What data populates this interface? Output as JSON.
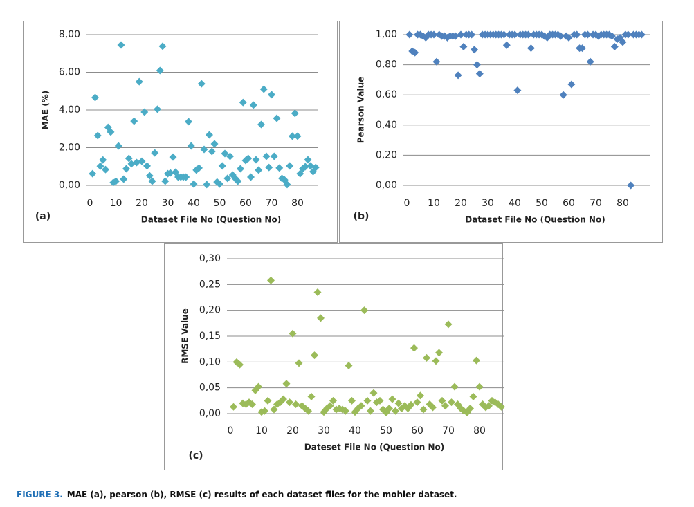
{
  "chart_data": [
    {
      "type": "scatter",
      "panel_label": "(a)",
      "y_label": "MAE (%)",
      "x_label": "Dataset File No (Question No)",
      "color": "#4bacc6",
      "grid": true,
      "xlim": [
        0,
        88
      ],
      "ylim": [
        0,
        8
      ],
      "xticks": [
        0,
        10,
        20,
        30,
        40,
        50,
        60,
        70,
        80
      ],
      "yticks": [
        {
          "value": 0,
          "label": "0,00"
        },
        {
          "value": 2,
          "label": "2,00"
        },
        {
          "value": 4,
          "label": "4,00"
        },
        {
          "value": 6,
          "label": "6,00"
        },
        {
          "value": 8,
          "label": "8,00"
        }
      ],
      "x": [
        1,
        2,
        3,
        4,
        5,
        6,
        7,
        8,
        9,
        10,
        11,
        12,
        13,
        14,
        15,
        16,
        17,
        18,
        19,
        20,
        21,
        22,
        23,
        24,
        25,
        26,
        27,
        28,
        29,
        30,
        31,
        32,
        33,
        34,
        35,
        36,
        37,
        38,
        39,
        40,
        41,
        42,
        43,
        44,
        45,
        46,
        47,
        48,
        49,
        50,
        51,
        52,
        53,
        54,
        55,
        56,
        57,
        58,
        59,
        60,
        61,
        62,
        63,
        64,
        65,
        66,
        67,
        68,
        69,
        70,
        71,
        72,
        73,
        74,
        75,
        76,
        77,
        78,
        79,
        80,
        81,
        82,
        83,
        84,
        85,
        86,
        87
      ],
      "values": [
        0.62,
        4.66,
        2.64,
        1.02,
        1.35,
        0.84,
        3.08,
        2.83,
        0.15,
        0.22,
        2.09,
        7.45,
        0.33,
        0.88,
        1.43,
        1.14,
        3.41,
        1.21,
        5.5,
        1.28,
        3.89,
        1.03,
        0.51,
        0.22,
        1.72,
        4.04,
        6.09,
        7.38,
        0.22,
        0.62,
        0.66,
        1.5,
        0.7,
        0.44,
        0.44,
        0.44,
        0.44,
        3.38,
        2.09,
        0.07,
        0.81,
        0.92,
        5.39,
        1.91,
        0.04,
        2.68,
        1.8,
        2.2,
        0.18,
        0.07,
        1.03,
        1.69,
        0.37,
        1.54,
        0.55,
        0.37,
        0.22,
        0.88,
        4.4,
        1.32,
        1.43,
        0.44,
        4.26,
        1.36,
        0.81,
        3.23,
        5.1,
        1.54,
        0.95,
        4.81,
        1.54,
        3.56,
        0.92,
        0.37,
        0.29,
        0.04,
        1.03,
        2.61,
        3.82,
        2.61,
        0.62,
        0.88,
        0.99,
        1.36,
        1.03,
        0.73,
        0.95
      ]
    },
    {
      "type": "scatter",
      "panel_label": "(b)",
      "y_label": "Pearson Value",
      "x_label": "Dataset File No (Question No)",
      "color": "#4f81bd",
      "grid": true,
      "xlim": [
        0,
        90
      ],
      "ylim": [
        0,
        1
      ],
      "xticks": [
        0,
        10,
        20,
        30,
        40,
        50,
        60,
        70,
        80
      ],
      "yticks": [
        {
          "value": 0,
          "label": "0,00"
        },
        {
          "value": 0.2,
          "label": "0,20"
        },
        {
          "value": 0.4,
          "label": "0,40"
        },
        {
          "value": 0.6,
          "label": "0,60"
        },
        {
          "value": 0.8,
          "label": "0,80"
        },
        {
          "value": 1,
          "label": "1,00"
        }
      ],
      "x": [
        1,
        2,
        3,
        4,
        5,
        6,
        7,
        8,
        9,
        10,
        11,
        12,
        13,
        14,
        15,
        16,
        17,
        18,
        19,
        20,
        21,
        22,
        23,
        24,
        25,
        26,
        27,
        28,
        29,
        30,
        31,
        32,
        33,
        34,
        35,
        36,
        37,
        38,
        39,
        40,
        41,
        42,
        43,
        44,
        45,
        46,
        47,
        48,
        49,
        50,
        51,
        52,
        53,
        54,
        55,
        56,
        57,
        58,
        59,
        60,
        61,
        62,
        63,
        64,
        65,
        66,
        67,
        68,
        69,
        70,
        71,
        72,
        73,
        74,
        75,
        76,
        77,
        78,
        79,
        80,
        81,
        82,
        83,
        84,
        85,
        86,
        87
      ],
      "values": [
        1.0,
        0.89,
        0.88,
        1.0,
        1.0,
        0.99,
        0.98,
        1.0,
        1.0,
        1.0,
        0.82,
        1.0,
        0.99,
        0.99,
        0.98,
        0.99,
        0.99,
        0.99,
        0.73,
        1.0,
        0.92,
        1.0,
        1.0,
        1.0,
        0.9,
        0.8,
        0.74,
        1.0,
        1.0,
        1.0,
        1.0,
        1.0,
        1.0,
        1.0,
        1.0,
        1.0,
        0.93,
        1.0,
        1.0,
        1.0,
        0.63,
        1.0,
        1.0,
        1.0,
        1.0,
        0.91,
        1.0,
        1.0,
        1.0,
        1.0,
        0.99,
        0.98,
        1.0,
        1.0,
        1.0,
        1.0,
        0.99,
        0.6,
        0.99,
        0.98,
        0.67,
        1.0,
        1.0,
        0.91,
        0.91,
        1.0,
        1.0,
        0.82,
        1.0,
        1.0,
        0.99,
        1.0,
        1.0,
        1.0,
        1.0,
        0.99,
        0.92,
        0.97,
        0.98,
        0.95,
        1.0,
        1.0,
        0.0,
        1.0,
        1.0,
        1.0,
        1.0
      ]
    },
    {
      "type": "scatter",
      "panel_label": "(c)",
      "y_label": "RMSE Value",
      "x_label": "Dateset File No (Question No)",
      "color": "#9bbb59",
      "grid": true,
      "xlim": [
        0,
        88
      ],
      "ylim": [
        0,
        0.3
      ],
      "xticks": [
        0,
        10,
        20,
        30,
        40,
        50,
        60,
        70,
        80
      ],
      "yticks": [
        {
          "value": 0,
          "label": "0,00"
        },
        {
          "value": 0.05,
          "label": "0,05"
        },
        {
          "value": 0.1,
          "label": "0,10"
        },
        {
          "value": 0.15,
          "label": "0,15"
        },
        {
          "value": 0.2,
          "label": "0,20"
        },
        {
          "value": 0.25,
          "label": "0,25"
        },
        {
          "value": 0.3,
          "label": "0,30"
        }
      ],
      "x": [
        1,
        2,
        3,
        4,
        5,
        6,
        7,
        8,
        9,
        10,
        11,
        12,
        13,
        14,
        15,
        16,
        17,
        18,
        19,
        20,
        21,
        22,
        23,
        24,
        25,
        26,
        27,
        28,
        29,
        30,
        31,
        32,
        33,
        34,
        35,
        36,
        37,
        38,
        39,
        40,
        41,
        42,
        43,
        44,
        45,
        46,
        47,
        48,
        49,
        50,
        51,
        52,
        53,
        54,
        55,
        56,
        57,
        58,
        59,
        60,
        61,
        62,
        63,
        64,
        65,
        66,
        67,
        68,
        69,
        70,
        71,
        72,
        73,
        74,
        75,
        76,
        77,
        78,
        79,
        80,
        81,
        82,
        83,
        84,
        85,
        86,
        87
      ],
      "values": [
        0.013,
        0.1,
        0.095,
        0.02,
        0.018,
        0.022,
        0.018,
        0.045,
        0.052,
        0.003,
        0.005,
        0.025,
        0.258,
        0.008,
        0.018,
        0.022,
        0.028,
        0.058,
        0.022,
        0.155,
        0.018,
        0.098,
        0.015,
        0.01,
        0.005,
        0.033,
        0.113,
        0.235,
        0.185,
        0.003,
        0.01,
        0.015,
        0.025,
        0.008,
        0.01,
        0.008,
        0.005,
        0.093,
        0.025,
        0.003,
        0.01,
        0.015,
        0.2,
        0.025,
        0.005,
        0.04,
        0.022,
        0.025,
        0.008,
        0.002,
        0.01,
        0.028,
        0.005,
        0.02,
        0.01,
        0.015,
        0.01,
        0.017,
        0.127,
        0.022,
        0.035,
        0.008,
        0.108,
        0.018,
        0.012,
        0.102,
        0.118,
        0.025,
        0.015,
        0.173,
        0.022,
        0.052,
        0.018,
        0.01,
        0.005,
        0.002,
        0.01,
        0.033,
        0.103,
        0.052,
        0.018,
        0.012,
        0.015,
        0.025,
        0.022,
        0.018,
        0.013
      ]
    }
  ],
  "caption": {
    "figure_label": "FIGURE 3.",
    "text": "MAE (a), pearson (b), RMSE (c) results of each dataset files for the mohler dataset."
  }
}
